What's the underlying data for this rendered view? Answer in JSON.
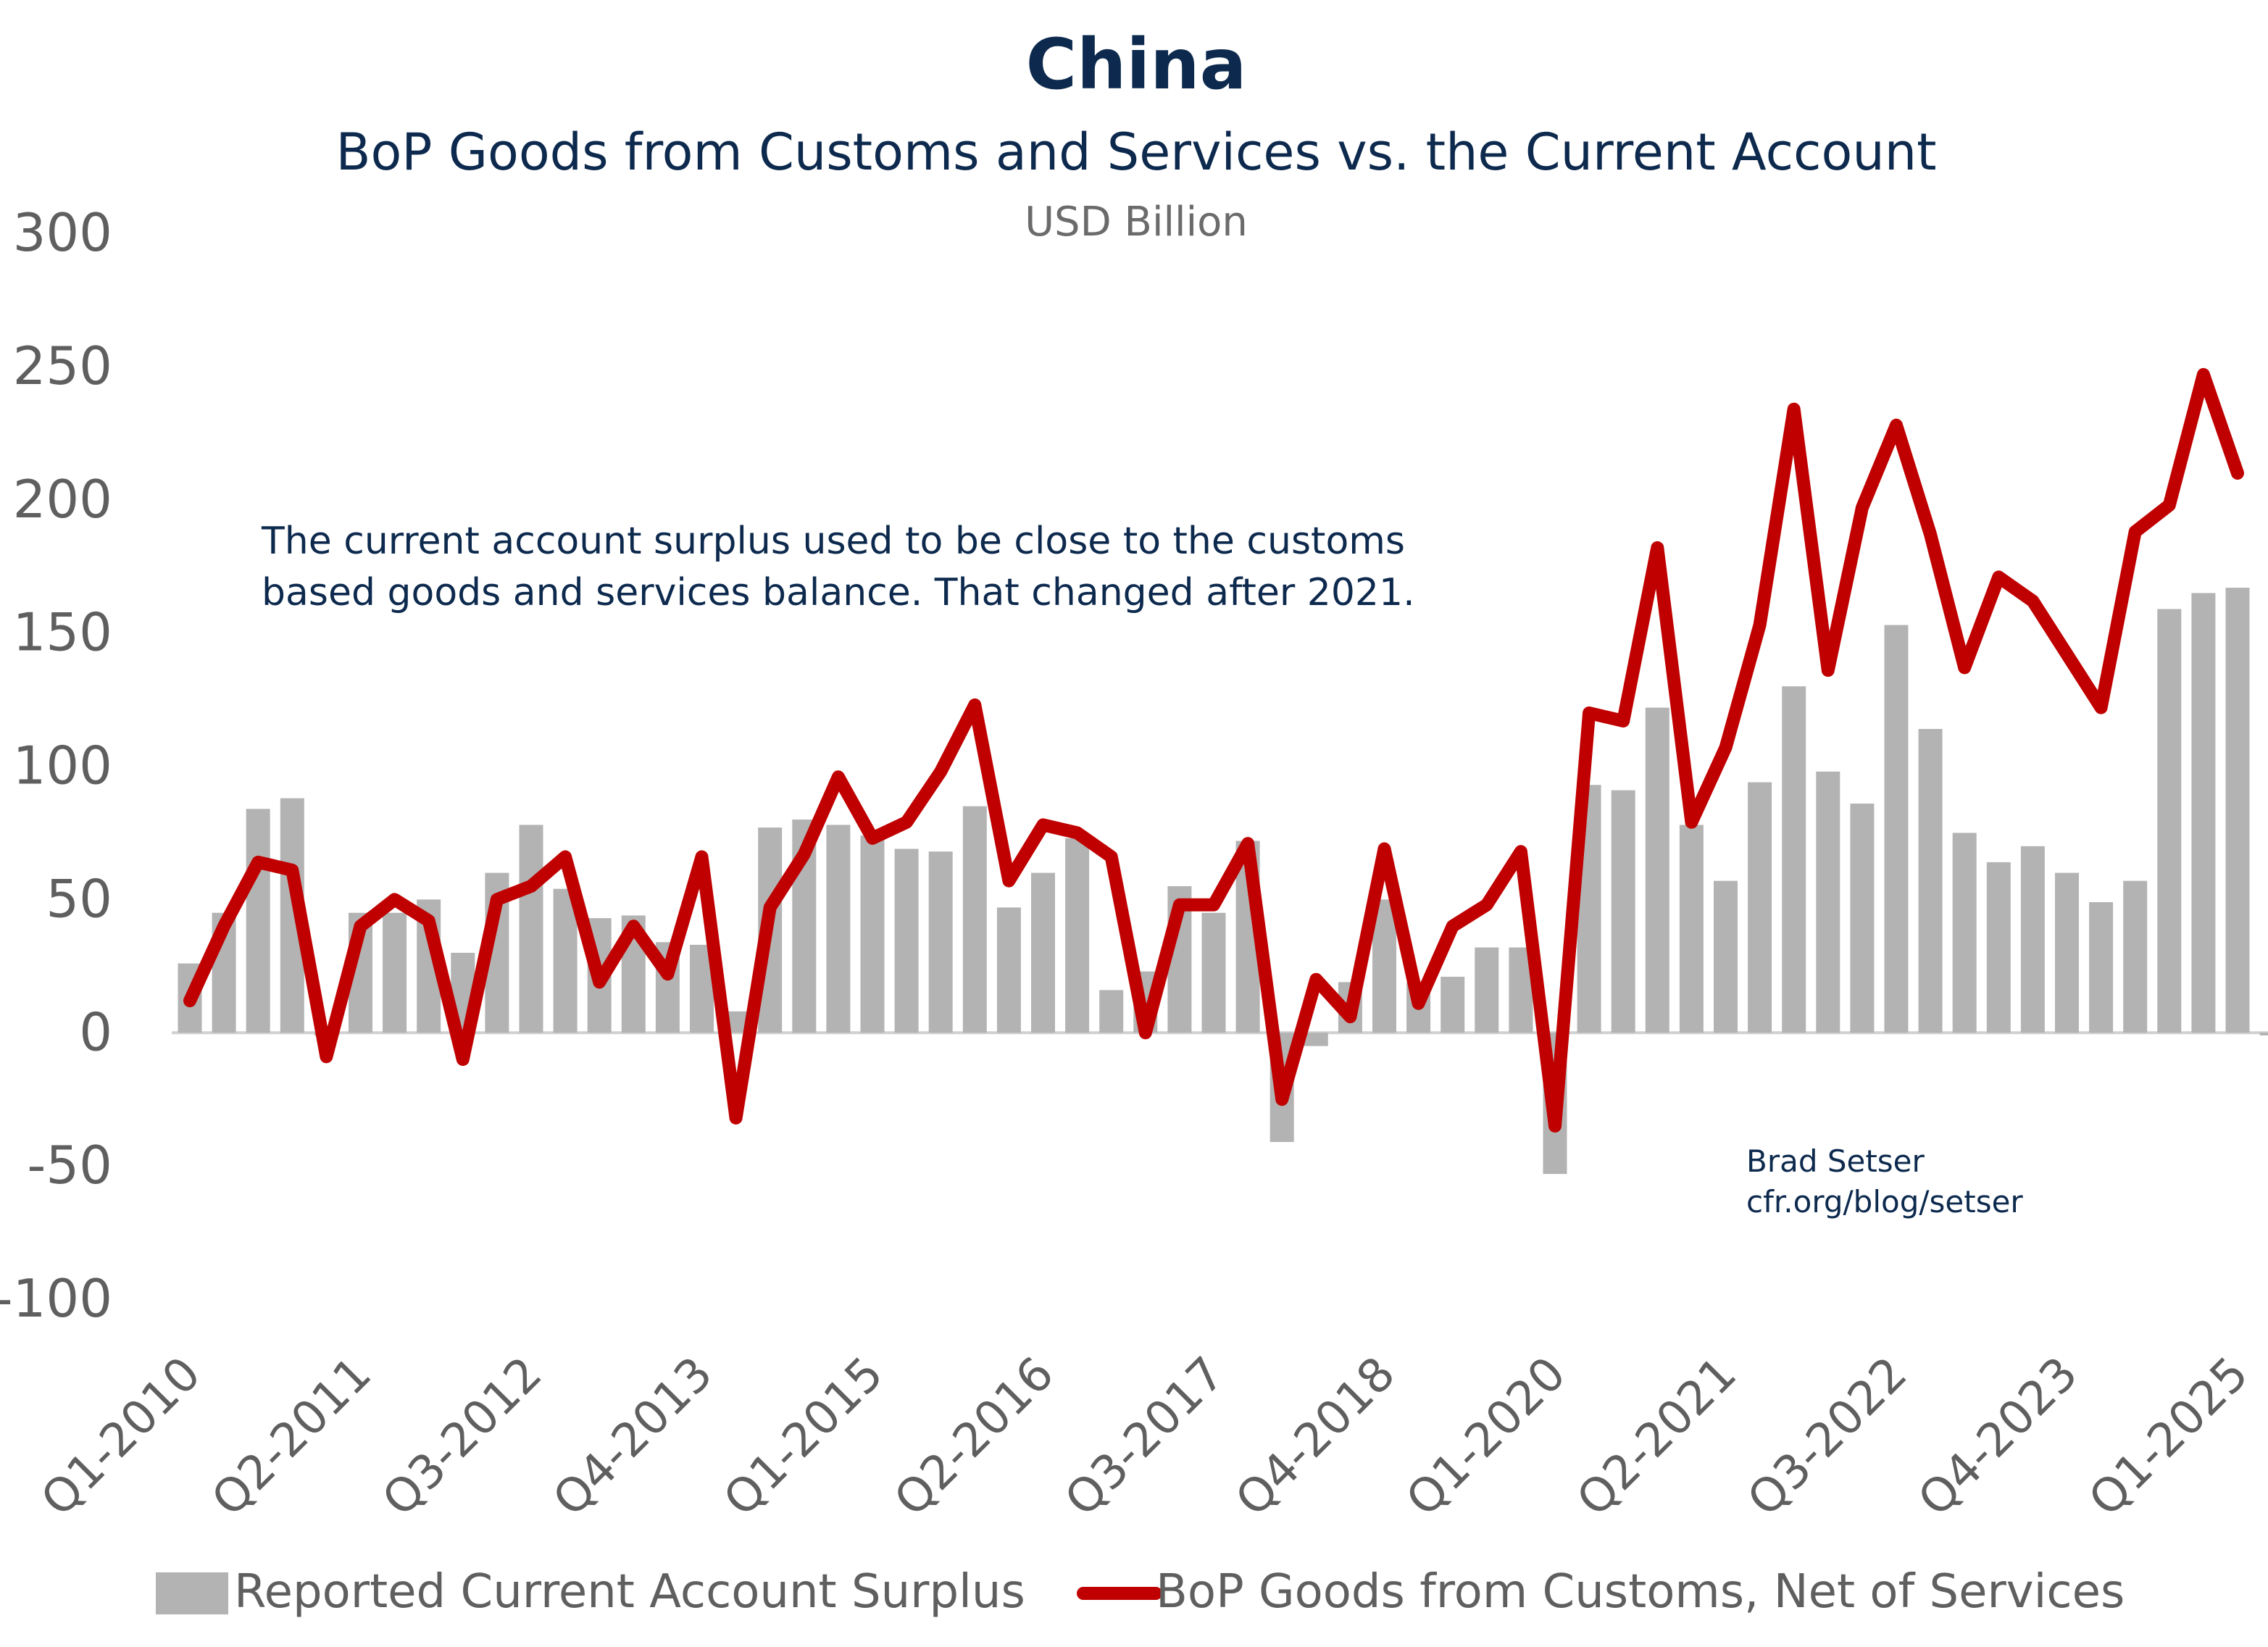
{
  "colors": {
    "title": "#0d2a4e",
    "bar": "#b3b3b3",
    "line": "#c00000",
    "axis_text": "#5f5f5f",
    "zero_line": "#d0d0d0"
  },
  "chart_data": {
    "type": "bar",
    "title": "China",
    "subtitle": "BoP Goods from Customs and Services vs. the Current Account",
    "units": "USD Billion",
    "annotation_lines": [
      "The current account surplus used to be close to the customs",
      "based goods and services balance. That changed after 2021."
    ],
    "credit_lines": [
      "Brad Setser",
      "cfr.org/blog/setser"
    ],
    "ylim": [
      -100,
      300
    ],
    "yticks": [
      "300",
      "250",
      "200",
      "150",
      "100",
      "50",
      "0",
      "-50",
      "-100"
    ],
    "ytick_values": [
      300,
      250,
      200,
      150,
      100,
      50,
      0,
      -50,
      -100
    ],
    "xtick_labels": [
      "Q1-2010",
      "Q2-2011",
      "Q3-2012",
      "Q4-2013",
      "Q1-2015",
      "Q2-2016",
      "Q3-2017",
      "Q4-2018",
      "Q1-2020",
      "Q2-2021",
      "Q3-2022",
      "Q4-2023",
      "Q1-2025"
    ],
    "xtick_index": [
      0,
      5,
      10,
      15,
      20,
      25,
      30,
      35,
      40,
      45,
      50,
      55,
      60
    ],
    "categories": [
      "Q1-2010",
      "Q2-2010",
      "Q3-2010",
      "Q4-2010",
      "Q1-2011",
      "Q2-2011",
      "Q3-2011",
      "Q4-2011",
      "Q1-2012",
      "Q2-2012",
      "Q3-2012",
      "Q4-2012",
      "Q1-2013",
      "Q2-2013",
      "Q3-2013",
      "Q4-2013",
      "Q1-2014",
      "Q2-2014",
      "Q3-2014",
      "Q4-2014",
      "Q1-2015",
      "Q2-2015",
      "Q3-2015",
      "Q4-2015",
      "Q1-2016",
      "Q2-2016",
      "Q3-2016",
      "Q4-2016",
      "Q1-2017",
      "Q2-2017",
      "Q3-2017",
      "Q4-2017",
      "Q1-2018",
      "Q2-2018",
      "Q3-2018",
      "Q4-2018",
      "Q1-2019",
      "Q2-2019",
      "Q3-2019",
      "Q4-2019",
      "Q1-2020",
      "Q2-2020",
      "Q3-2020",
      "Q4-2020",
      "Q1-2021",
      "Q2-2021",
      "Q3-2021",
      "Q4-2021",
      "Q1-2022",
      "Q2-2022",
      "Q3-2022",
      "Q4-2022",
      "Q1-2023",
      "Q2-2023",
      "Q3-2023",
      "Q4-2023",
      "Q1-2024",
      "Q2-2024",
      "Q3-2024",
      "Q4-2024",
      "Q1-2025",
      "Q2-2025"
    ],
    "series": [
      {
        "name": "Reported Current Account Surplus",
        "type": "bar",
        "values": [
          26,
          45,
          84,
          88,
          -1,
          45,
          45,
          50,
          30,
          60,
          78,
          54,
          43,
          44,
          34,
          33,
          8,
          77,
          80,
          78,
          74,
          69,
          68,
          85,
          47,
          60,
          73,
          16,
          23,
          55,
          45,
          72,
          -41,
          -5,
          19,
          50,
          19,
          21,
          32,
          32,
          -53,
          93,
          91,
          122,
          78,
          57,
          94,
          130,
          98,
          86,
          153,
          114,
          75,
          64,
          70,
          60,
          49,
          57,
          159,
          165,
          167,
          -1
        ]
      },
      {
        "name": "BoP Goods from Customs, Net of Services",
        "type": "line",
        "values": [
          12,
          40,
          64,
          61,
          -9,
          40,
          50,
          42,
          -10,
          50,
          55,
          66,
          19,
          40,
          22,
          66,
          -32,
          47,
          67,
          96,
          73,
          79,
          98,
          123,
          57,
          78,
          75,
          66,
          0,
          48,
          48,
          71,
          -25,
          20,
          6,
          69,
          11,
          40,
          48,
          68,
          -35,
          120,
          117,
          182,
          79,
          107,
          153,
          234,
          136,
          197,
          228,
          187,
          137,
          171,
          162,
          142,
          122,
          188,
          198,
          247,
          210,
          null
        ]
      }
    ],
    "legend": [
      "Reported Current Account Surplus",
      "BoP Goods from Customs, Net of Services"
    ]
  }
}
